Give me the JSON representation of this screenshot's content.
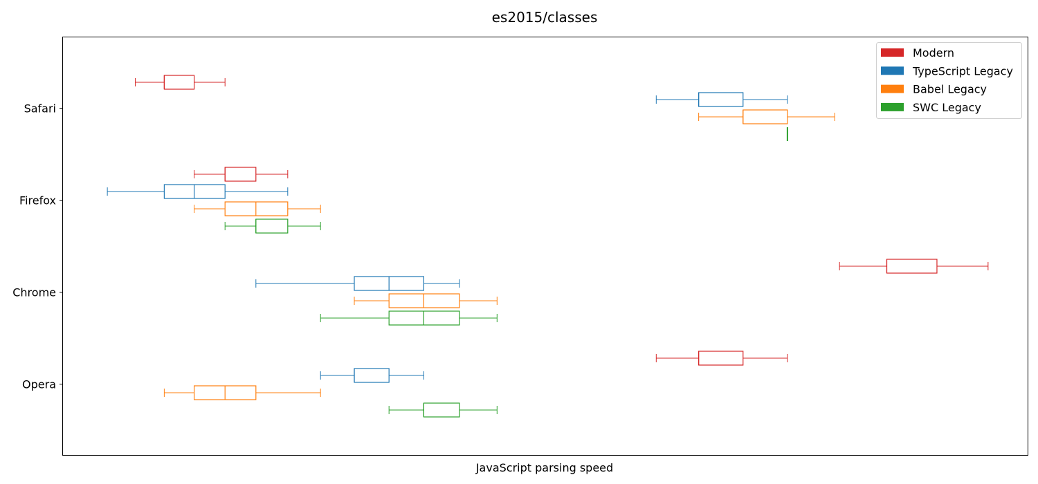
{
  "chart_data": {
    "type": "box",
    "title": "es2015/classes",
    "xlabel": "JavaScript parsing speed",
    "ylabel": "",
    "xticks_shown": false,
    "xlim": [
      0,
      1000
    ],
    "grid": false,
    "legend_position": "top-right",
    "categories": [
      "Safari",
      "Firefox",
      "Chrome",
      "Opera"
    ],
    "series": [
      {
        "name": "Modern",
        "color": "#d62728",
        "boxes": [
          {
            "category": "Safari",
            "whisker_low": 75,
            "q1": 105,
            "median": 105,
            "q3": 136,
            "whisker_high": 168
          },
          {
            "category": "Firefox",
            "whisker_low": 136,
            "q1": 168,
            "median": 168,
            "q3": 200,
            "whisker_high": 233
          },
          {
            "category": "Chrome",
            "whisker_low": 805,
            "q1": 854,
            "median": 854,
            "q3": 906,
            "whisker_high": 959
          },
          {
            "category": "Opera",
            "whisker_low": 615,
            "q1": 659,
            "median": 659,
            "q3": 705,
            "whisker_high": 751
          }
        ]
      },
      {
        "name": "TypeScript Legacy",
        "color": "#1f77b4",
        "boxes": [
          {
            "category": "Safari",
            "whisker_low": 615,
            "q1": 659,
            "median": 659,
            "q3": 705,
            "whisker_high": 751
          },
          {
            "category": "Firefox",
            "whisker_low": 46,
            "q1": 105,
            "median": 136,
            "q3": 168,
            "whisker_high": 233
          },
          {
            "category": "Chrome",
            "whisker_low": 200,
            "q1": 302,
            "median": 338,
            "q3": 374,
            "whisker_high": 411
          },
          {
            "category": "Opera",
            "whisker_low": 267,
            "q1": 302,
            "median": 302,
            "q3": 338,
            "whisker_high": 374
          }
        ]
      },
      {
        "name": "Babel Legacy",
        "color": "#ff7f0e",
        "boxes": [
          {
            "category": "Safari",
            "whisker_low": 659,
            "q1": 705,
            "median": 705,
            "q3": 751,
            "whisker_high": 800
          },
          {
            "category": "Firefox",
            "whisker_low": 136,
            "q1": 168,
            "median": 200,
            "q3": 233,
            "whisker_high": 267
          },
          {
            "category": "Chrome",
            "whisker_low": 302,
            "q1": 338,
            "median": 374,
            "q3": 411,
            "whisker_high": 450
          },
          {
            "category": "Opera",
            "whisker_low": 105,
            "q1": 136,
            "median": 168,
            "q3": 200,
            "whisker_high": 267
          }
        ]
      },
      {
        "name": "SWC Legacy",
        "color": "#2ca02c",
        "boxes": [
          {
            "category": "Safari",
            "whisker_low": 751,
            "q1": 751,
            "median": 751,
            "q3": 751,
            "whisker_high": 751
          },
          {
            "category": "Firefox",
            "whisker_low": 168,
            "q1": 200,
            "median": 200,
            "q3": 233,
            "whisker_high": 267
          },
          {
            "category": "Chrome",
            "whisker_low": 267,
            "q1": 338,
            "median": 374,
            "q3": 411,
            "whisker_high": 450
          },
          {
            "category": "Opera",
            "whisker_low": 338,
            "q1": 374,
            "median": 374,
            "q3": 411,
            "whisker_high": 450
          }
        ]
      }
    ]
  }
}
